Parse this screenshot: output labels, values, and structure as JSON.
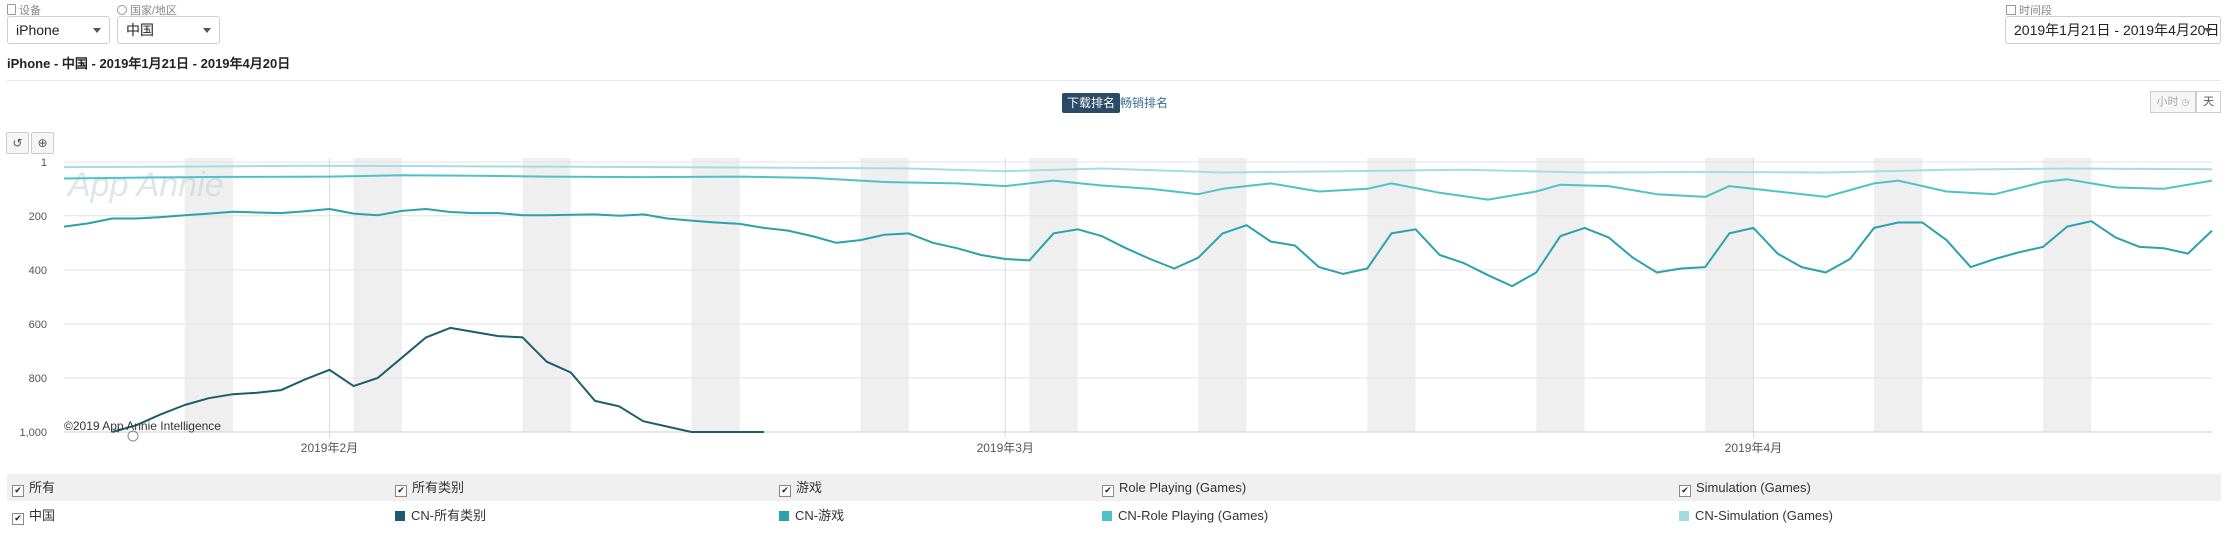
{
  "filters": {
    "device_label": "设备",
    "device_value": "iPhone",
    "country_label": "国家/地区",
    "country_value": "中国",
    "period_label": "时间段",
    "period_value": "2019年1月21日 - 2019年4月20日"
  },
  "subtitle": "iPhone - 中国 - 2019年1月21日 - 2019年4月20日",
  "tabs": {
    "active": "下载排名",
    "inactive": "畅销排名"
  },
  "granularity": {
    "hour": "小时",
    "day": "天"
  },
  "watermark": "App Annie",
  "copyright": "©2019 App Annie Intelligence",
  "legend": {
    "header": {
      "all_label": "所有",
      "columns": [
        "所有类别",
        "游戏",
        "Role Playing (Games)",
        "Simulation (Games)"
      ]
    },
    "row": {
      "label": "中国",
      "entries": [
        "CN-所有类别",
        "CN-游戏",
        "CN-Role Playing (Games)",
        "CN-Simulation (Games)"
      ]
    }
  },
  "chart_data": {
    "type": "line",
    "y_reversed": true,
    "ylim": [
      1,
      1000
    ],
    "yticks": [
      1,
      200,
      400,
      600,
      800,
      1000
    ],
    "ytick_labels": [
      "1",
      "200",
      "400",
      "600",
      "800",
      "1,000"
    ],
    "x_start": "2019-01-21",
    "x_end": "2019-04-20",
    "xticks": [
      {
        "date": "2019-02-01",
        "label": "2019年2月"
      },
      {
        "date": "2019-03-01",
        "label": "2019年3月"
      },
      {
        "date": "2019-04-01",
        "label": "2019年4月"
      }
    ],
    "weekends": [
      [
        "2019-01-26",
        "2019-01-27"
      ],
      [
        "2019-02-02",
        "2019-02-03"
      ],
      [
        "2019-02-09",
        "2019-02-10"
      ],
      [
        "2019-02-16",
        "2019-02-17"
      ],
      [
        "2019-02-23",
        "2019-02-24"
      ],
      [
        "2019-03-02",
        "2019-03-03"
      ],
      [
        "2019-03-09",
        "2019-03-10"
      ],
      [
        "2019-03-16",
        "2019-03-17"
      ],
      [
        "2019-03-23",
        "2019-03-24"
      ],
      [
        "2019-03-30",
        "2019-03-31"
      ],
      [
        "2019-04-06",
        "2019-04-07"
      ],
      [
        "2019-04-13",
        "2019-04-14"
      ]
    ],
    "series": [
      {
        "name": "CN-所有类别",
        "color": "#1b5c6e",
        "x": [
          "2019-01-23",
          "2019-01-24",
          "2019-01-25",
          "2019-01-26",
          "2019-01-27",
          "2019-01-28",
          "2019-01-29",
          "2019-01-30",
          "2019-01-31",
          "2019-02-01",
          "2019-02-02",
          "2019-02-03",
          "2019-02-04",
          "2019-02-05",
          "2019-02-06",
          "2019-02-07",
          "2019-02-08",
          "2019-02-09",
          "2019-02-10",
          "2019-02-11",
          "2019-02-12",
          "2019-02-13",
          "2019-02-14",
          "2019-02-15",
          "2019-02-16",
          "2019-02-17",
          "2019-02-18",
          "2019-02-19"
        ],
        "values": [
          1000,
          975,
          935,
          900,
          875,
          860,
          855,
          845,
          805,
          770,
          830,
          800,
          725,
          650,
          615,
          630,
          645,
          650,
          740,
          780,
          885,
          905,
          960,
          980,
          1000,
          1000,
          1000,
          1000
        ]
      },
      {
        "name": "CN-游戏",
        "color": "#2aa1ad",
        "x": [
          "2019-01-21",
          "2019-01-22",
          "2019-01-23",
          "2019-01-24",
          "2019-01-25",
          "2019-01-26",
          "2019-01-27",
          "2019-01-28",
          "2019-01-29",
          "2019-01-30",
          "2019-01-31",
          "2019-02-01",
          "2019-02-02",
          "2019-02-03",
          "2019-02-04",
          "2019-02-05",
          "2019-02-06",
          "2019-02-07",
          "2019-02-08",
          "2019-02-09",
          "2019-02-10",
          "2019-02-11",
          "2019-02-12",
          "2019-02-13",
          "2019-02-14",
          "2019-02-15",
          "2019-02-16",
          "2019-02-17",
          "2019-02-18",
          "2019-02-19",
          "2019-02-20",
          "2019-02-21",
          "2019-02-22",
          "2019-02-23",
          "2019-02-24",
          "2019-02-25",
          "2019-02-26",
          "2019-02-27",
          "2019-02-28",
          "2019-03-01",
          "2019-03-02",
          "2019-03-03",
          "2019-03-04",
          "2019-03-05",
          "2019-03-06",
          "2019-03-07",
          "2019-03-08",
          "2019-03-09",
          "2019-03-10",
          "2019-03-11",
          "2019-03-12",
          "2019-03-13",
          "2019-03-14",
          "2019-03-15",
          "2019-03-16",
          "2019-03-17",
          "2019-03-18",
          "2019-03-19",
          "2019-03-20",
          "2019-03-21",
          "2019-03-22",
          "2019-03-23",
          "2019-03-24",
          "2019-03-25",
          "2019-03-26",
          "2019-03-27",
          "2019-03-28",
          "2019-03-29",
          "2019-03-30",
          "2019-03-31",
          "2019-04-01",
          "2019-04-02",
          "2019-04-03",
          "2019-04-04",
          "2019-04-05",
          "2019-04-06",
          "2019-04-07",
          "2019-04-08",
          "2019-04-09",
          "2019-04-10",
          "2019-04-11",
          "2019-04-12",
          "2019-04-13",
          "2019-04-14",
          "2019-04-15",
          "2019-04-16",
          "2019-04-17",
          "2019-04-18",
          "2019-04-19",
          "2019-04-20"
        ],
        "values": [
          240,
          228,
          210,
          210,
          205,
          198,
          192,
          185,
          188,
          190,
          183,
          175,
          192,
          198,
          182,
          175,
          186,
          190,
          190,
          198,
          198,
          196,
          195,
          200,
          195,
          210,
          218,
          225,
          230,
          245,
          255,
          275,
          300,
          290,
          270,
          265,
          300,
          320,
          345,
          360,
          365,
          265,
          250,
          275,
          320,
          360,
          395,
          355,
          265,
          235,
          295,
          310,
          390,
          415,
          395,
          265,
          250,
          345,
          375,
          420,
          460,
          410,
          275,
          245,
          280,
          355,
          410,
          395,
          390,
          265,
          245,
          340,
          390,
          410,
          360,
          245,
          225,
          225,
          290,
          390,
          360,
          335,
          315,
          240,
          220,
          280,
          315,
          320,
          340,
          255
        ]
      },
      {
        "name": "CN-Role Playing (Games)",
        "color": "#4fc2c9",
        "x": [
          "2019-01-21",
          "2019-01-25",
          "2019-01-28",
          "2019-02-01",
          "2019-02-04",
          "2019-02-07",
          "2019-02-10",
          "2019-02-14",
          "2019-02-18",
          "2019-02-21",
          "2019-02-24",
          "2019-02-27",
          "2019-03-01",
          "2019-03-03",
          "2019-03-05",
          "2019-03-07",
          "2019-03-09",
          "2019-03-10",
          "2019-03-12",
          "2019-03-14",
          "2019-03-16",
          "2019-03-17",
          "2019-03-19",
          "2019-03-21",
          "2019-03-23",
          "2019-03-24",
          "2019-03-26",
          "2019-03-28",
          "2019-03-30",
          "2019-03-31",
          "2019-04-02",
          "2019-04-04",
          "2019-04-06",
          "2019-04-07",
          "2019-04-09",
          "2019-04-11",
          "2019-04-13",
          "2019-04-14",
          "2019-04-16",
          "2019-04-18",
          "2019-04-20"
        ],
        "values": [
          62,
          58,
          56,
          55,
          50,
          52,
          55,
          57,
          55,
          60,
          75,
          80,
          90,
          70,
          88,
          100,
          120,
          100,
          80,
          110,
          100,
          80,
          115,
          140,
          110,
          85,
          90,
          120,
          130,
          90,
          110,
          130,
          80,
          70,
          110,
          120,
          75,
          65,
          95,
          100,
          70
        ]
      },
      {
        "name": "CN-Simulation (Games)",
        "color": "#a3dde3",
        "x": [
          "2019-01-21",
          "2019-01-26",
          "2019-01-31",
          "2019-02-05",
          "2019-02-10",
          "2019-02-15",
          "2019-02-20",
          "2019-02-25",
          "2019-03-01",
          "2019-03-05",
          "2019-03-10",
          "2019-03-15",
          "2019-03-20",
          "2019-03-25",
          "2019-03-30",
          "2019-04-04",
          "2019-04-09",
          "2019-04-14",
          "2019-04-20"
        ],
        "values": [
          20,
          18,
          15,
          16,
          18,
          20,
          22,
          25,
          35,
          25,
          40,
          35,
          30,
          40,
          38,
          40,
          30,
          25,
          28
        ]
      }
    ]
  }
}
